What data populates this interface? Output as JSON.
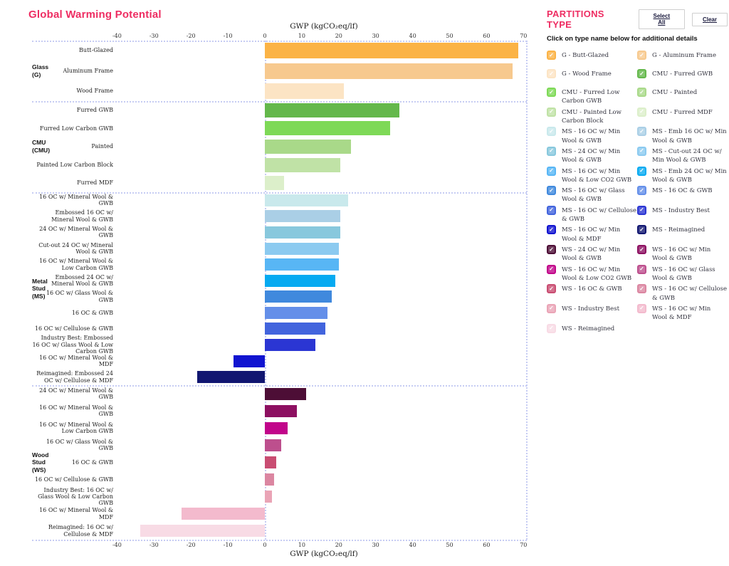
{
  "chart_data": {
    "type": "bar",
    "orientation": "horizontal",
    "title": "Global Warming Potential",
    "title_color": "#ee2d62",
    "xlabel": "GWP (kgCO₂eq/lf)",
    "xlim": [
      -40,
      70
    ],
    "xticks": [
      -40,
      -30,
      -20,
      -10,
      0,
      10,
      20,
      30,
      40,
      50,
      60,
      70
    ],
    "grid": "dotted section separators and zero line",
    "groups": [
      {
        "name": "Glass (G)",
        "label_lines": "Glass\n(G)",
        "rows": [
          {
            "label": "Butt-Glazed",
            "value": 68.5,
            "color": "#fbb346"
          },
          {
            "label": "Aluminum Frame",
            "value": 67.0,
            "color": "#f7c98e"
          },
          {
            "label": "Wood Frame",
            "value": 21.3,
            "color": "#fce4c4"
          }
        ]
      },
      {
        "name": "CMU (CMU)",
        "label_lines": "CMU\n(CMU)",
        "rows": [
          {
            "label": "Furred GWB",
            "value": 36.4,
            "color": "#64b84b"
          },
          {
            "label": "Furred Low Carbon GWB",
            "value": 33.9,
            "color": "#7ed957"
          },
          {
            "label": "Painted",
            "value": 23.3,
            "color": "#a9d989"
          },
          {
            "label": "Painted Low Carbon Block",
            "value": 20.4,
            "color": "#c0e2a6"
          },
          {
            "label": "Furred MDF",
            "value": 5.2,
            "color": "#dcefca"
          }
        ]
      },
      {
        "name": "Metal Stud (MS)",
        "label_lines": "Metal\nStud\n(MS)",
        "rows": [
          {
            "label": "16 OC w/ Mineral Wool & GWB",
            "value": 22.5,
            "color": "#c9e9ec"
          },
          {
            "label": "Embossed 16 OC w/ Mineral Wool & GWB",
            "value": 20.5,
            "color": "#aacfe6"
          },
          {
            "label": "24 OC w/ Mineral Wool & GWB",
            "value": 20.4,
            "color": "#88c8dd"
          },
          {
            "label": "Cut-out 24 OC w/ Mineral Wool & GWB",
            "value": 20.0,
            "color": "#8bcaf0"
          },
          {
            "label": "16 OC w/ Mineral Wool & Low Carbon GWB",
            "value": 20.0,
            "color": "#58b6f5"
          },
          {
            "label": "Embossed 24 OC w/ Mineral Wool & GWB",
            "value": 19.1,
            "color": "#06aaf1"
          },
          {
            "label": "16 OC w/ Glass Wool & GWB",
            "value": 18.1,
            "color": "#4089dd"
          },
          {
            "label": "16 OC & GWB",
            "value": 17.0,
            "color": "#648fe9"
          },
          {
            "label": "16 OC w/ Cellulose & GWB",
            "value": 16.3,
            "color": "#4264dd"
          },
          {
            "label": "Industry Best: Embossed 16 OC w/ Glass Wool & Low Carbon GWB",
            "value": 13.6,
            "color": "#2b36d3"
          },
          {
            "label": "16 OC w/ Mineral Wool & MDF",
            "value": -8.5,
            "color": "#1114d0"
          },
          {
            "label": "Reimagined: Embossed 24 OC w/ Cellulose & MDF",
            "value": -18.4,
            "color": "#111671"
          }
        ]
      },
      {
        "name": "Wood Stud (WS)",
        "label_lines": "Wood\nStud\n(WS)",
        "rows": [
          {
            "label": "24 OC w/ Mineral Wool & GWB",
            "value": 11.2,
            "color": "#4d0e36"
          },
          {
            "label": "16 OC w/ Mineral Wool & GWB",
            "value": 8.7,
            "color": "#8d1061"
          },
          {
            "label": "16 OC w/ Mineral Wool & Low Carbon GWB",
            "value": 6.2,
            "color": "#c1058a"
          },
          {
            "label": "16 OC w/ Glass Wool & GWB",
            "value": 4.4,
            "color": "#bd4f8d"
          },
          {
            "label": "16 OC & GWB",
            "value": 3.1,
            "color": "#c94d72"
          },
          {
            "label": "16 OC w/ Cellulose & GWB",
            "value": 2.6,
            "color": "#db86a1"
          },
          {
            "label": "Industry Best: 16 OC w/ Glass Wool & Low Carbon GWB",
            "value": 1.9,
            "color": "#eaa4b6"
          },
          {
            "label": "16 OC w/ Mineral Wool & MDF",
            "value": -22.5,
            "color": "#f3bacd"
          },
          {
            "label": "Reimagined: 16 OC w/ Cellulose & MDF",
            "value": -33.8,
            "color": "#f8dbe5"
          }
        ]
      }
    ]
  },
  "legend": {
    "title": "PARTITIONS TYPE",
    "title_color": "#ee2d62",
    "select_all_label": "Select All",
    "clear_label": "Clear",
    "subtitle": "Click on type name below for additional details",
    "items": [
      {
        "label": "G - Butt-Glazed",
        "color": "#fbb346",
        "checked": true
      },
      {
        "label": "G - Aluminum Frame",
        "color": "#f7c98e",
        "checked": true
      },
      {
        "label": "G - Wood Frame",
        "color": "#fce4c4",
        "checked": true
      },
      {
        "label": "CMU - Furred GWB",
        "color": "#64b84b",
        "checked": true
      },
      {
        "label": "CMU - Furred Low Carbon GWB",
        "color": "#7ed957",
        "checked": true
      },
      {
        "label": "CMU - Painted",
        "color": "#a9d989",
        "checked": true
      },
      {
        "label": "CMU - Painted Low Carbon Block",
        "color": "#c0e2a6",
        "checked": true
      },
      {
        "label": "CMU - Furred MDF",
        "color": "#dcefca",
        "checked": true
      },
      {
        "label": "MS - 16 OC w/ Min Wool & GWB",
        "color": "#c9e9ec",
        "checked": true
      },
      {
        "label": "MS - Emb 16 OC w/ Min Wool & GWB",
        "color": "#aacfe6",
        "checked": true
      },
      {
        "label": "MS - 24 OC w/ Min Wool & GWB",
        "color": "#88c8dd",
        "checked": true
      },
      {
        "label": "MS - Cut-out 24 OC w/ Min Wool & GWB",
        "color": "#8bcaf0",
        "checked": true
      },
      {
        "label": "MS - 16 OC w/ Min Wool & Low CO2 GWB",
        "color": "#58b6f5",
        "checked": true
      },
      {
        "label": "MS - Emb 24 OC w/ Min Wool & GWB",
        "color": "#06aaf1",
        "checked": true
      },
      {
        "label": "MS - 16 OC w/ Glass Wool & GWB",
        "color": "#4089dd",
        "checked": true
      },
      {
        "label": "MS - 16 OC & GWB",
        "color": "#648fe9",
        "checked": true
      },
      {
        "label": "MS - 16 OC w/ Cellulose & GWB",
        "color": "#4264dd",
        "checked": true
      },
      {
        "label": "MS - Industry Best",
        "color": "#2b36d3",
        "checked": true
      },
      {
        "label": "MS - 16 OC w/ Min Wool & MDF",
        "color": "#1114d0",
        "checked": true
      },
      {
        "label": "MS - Reimagined",
        "color": "#111671",
        "checked": true
      },
      {
        "label": "WS - 24 OC w/ Min Wool & GWB",
        "color": "#4d0e36",
        "checked": true
      },
      {
        "label": "WS - 16 OC w/ Min Wool & GWB",
        "color": "#8d1061",
        "checked": true
      },
      {
        "label": "WS - 16 OC w/ Min Wool & Low CO2 GWB",
        "color": "#c1058a",
        "checked": true
      },
      {
        "label": "WS - 16 OC w/ Glass Wool & GWB",
        "color": "#bd4f8d",
        "checked": true
      },
      {
        "label": "WS - 16 OC & GWB",
        "color": "#c94d72",
        "checked": true
      },
      {
        "label": "WS - 16 OC w/ Cellulose & GWB",
        "color": "#db86a1",
        "checked": true
      },
      {
        "label": "WS - Industry Best",
        "color": "#eaa4b6",
        "checked": true
      },
      {
        "label": "WS - 16 OC w/ Min Wool & MDF",
        "color": "#f3bacd",
        "checked": true
      },
      {
        "label": "WS - Reimagined",
        "color": "#f8dbe5",
        "checked": true
      }
    ]
  }
}
